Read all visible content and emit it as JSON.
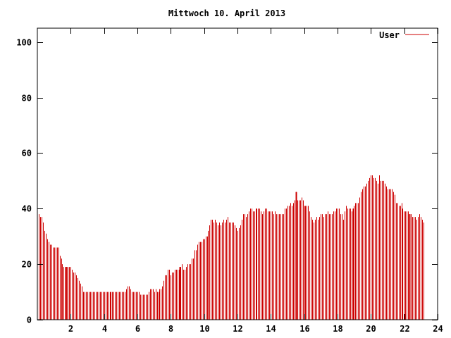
{
  "chart_data": {
    "type": "bar",
    "title": "Mittwoch 10. April 2013",
    "xlabel": "",
    "ylabel": "",
    "xlim": [
      0,
      24
    ],
    "ylim": [
      0,
      105
    ],
    "xticks": [
      2,
      4,
      6,
      8,
      10,
      12,
      14,
      16,
      18,
      20,
      22,
      24
    ],
    "yticks": [
      0,
      20,
      40,
      60,
      80,
      100
    ],
    "grid": false,
    "legend_position": "top-right",
    "series": [
      {
        "name": "User",
        "color": "#cc0000",
        "x_start": 0.083,
        "x_step": 0.0833,
        "values": [
          38,
          37,
          37,
          35,
          32,
          31,
          29,
          28,
          27,
          27,
          26,
          26,
          26,
          26,
          26,
          23,
          22,
          20,
          19,
          19,
          19,
          19,
          19,
          19,
          18,
          17,
          17,
          16,
          15,
          14,
          13,
          12,
          10,
          10,
          10,
          10,
          10,
          10,
          10,
          10,
          10,
          10,
          10,
          10,
          10,
          10,
          10,
          10,
          10,
          10,
          10,
          10,
          10,
          10,
          10,
          10,
          10,
          10,
          10,
          10,
          10,
          10,
          10,
          11,
          12,
          12,
          11,
          10,
          10,
          10,
          10,
          10,
          10,
          9,
          9,
          9,
          9,
          9,
          9,
          10,
          11,
          11,
          11,
          10,
          11,
          10,
          10,
          11,
          11,
          12,
          14,
          16,
          16,
          18,
          18,
          16,
          17,
          17,
          18,
          18,
          18,
          18,
          19,
          20,
          18,
          18,
          19,
          20,
          20,
          20,
          22,
          22,
          25,
          25,
          27,
          28,
          28,
          28,
          29,
          29,
          30,
          30,
          32,
          34,
          36,
          36,
          35,
          36,
          35,
          34,
          35,
          34,
          35,
          36,
          35,
          36,
          37,
          35,
          35,
          35,
          35,
          34,
          33,
          32,
          33,
          34,
          36,
          38,
          38,
          37,
          38,
          39,
          40,
          40,
          39,
          39,
          40,
          40,
          40,
          40,
          39,
          38,
          39,
          40,
          40,
          39,
          39,
          39,
          39,
          38,
          39,
          38,
          38,
          38,
          38,
          38,
          38,
          40,
          40,
          41,
          41,
          42,
          41,
          42,
          43,
          46,
          43,
          43,
          43,
          44,
          43,
          41,
          41,
          41,
          41,
          39,
          37,
          36,
          35,
          36,
          37,
          36,
          37,
          38,
          38,
          37,
          38,
          38,
          39,
          38,
          38,
          38,
          39,
          39,
          40,
          40,
          40,
          38,
          38,
          36,
          39,
          41,
          40,
          40,
          40,
          39,
          40,
          41,
          42,
          42,
          42,
          44,
          46,
          47,
          48,
          48,
          49,
          50,
          51,
          52,
          52,
          51,
          51,
          50,
          49,
          52,
          50,
          50,
          50,
          49,
          48,
          47,
          47,
          47,
          47,
          46,
          45,
          42,
          42,
          41,
          41,
          42,
          40,
          39,
          39,
          39,
          39,
          38,
          38,
          37,
          37,
          37,
          36,
          37,
          38,
          37,
          36,
          35
        ],
        "emphasized_x": [
          1.75,
          8.55,
          15.5,
          18.95,
          22.3
        ]
      }
    ]
  }
}
